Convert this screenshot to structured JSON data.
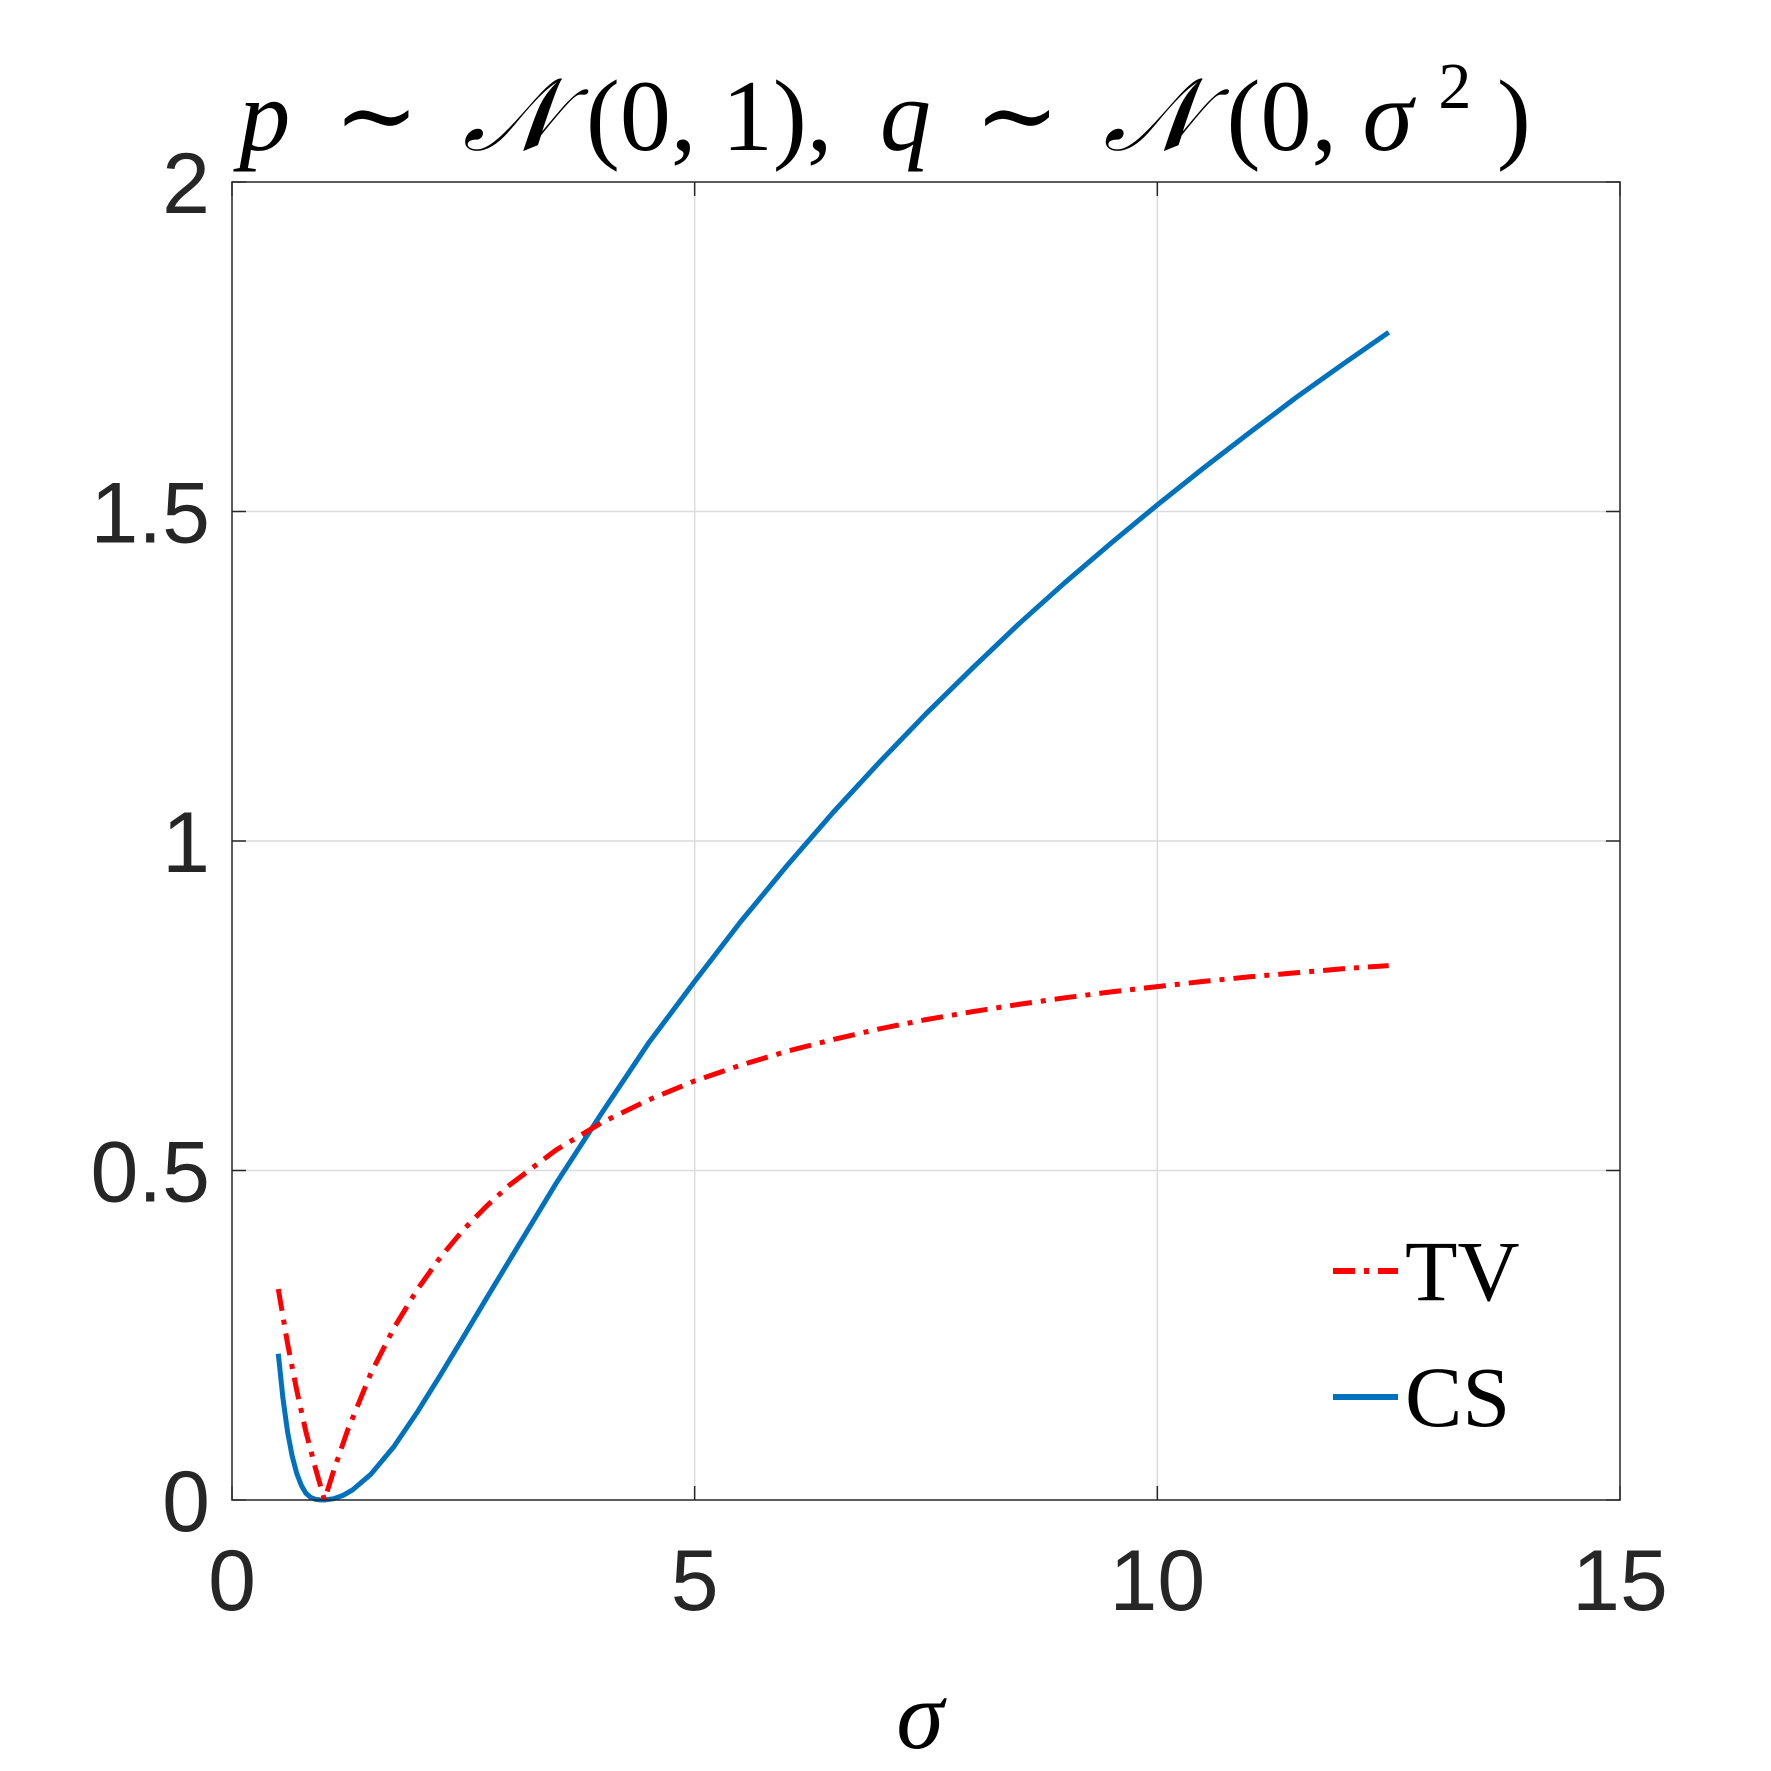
{
  "chart_data": {
    "type": "line",
    "title": "p ~ 𝒩(0, 1), q ~ 𝒩(0, σ²)",
    "title_parts": {
      "p": "p",
      "sim1": "∼",
      "N1": "𝒩",
      "args1": "(0, 1),",
      "q": "q",
      "sim2": "∼",
      "N2": "𝒩",
      "args2_open": "(0, ",
      "sigma": "σ",
      "sup": "2",
      "args2_close": ")"
    },
    "xlabel": "σ",
    "ylabel": "",
    "xlim": [
      0,
      15
    ],
    "ylim": [
      0,
      2
    ],
    "xticks": [
      0,
      5,
      10,
      15
    ],
    "yticks": [
      0,
      0.5,
      1,
      1.5,
      2
    ],
    "xtick_labels": [
      "0",
      "5",
      "10",
      "15"
    ],
    "ytick_labels": [
      "0",
      "0.5",
      "1",
      "1.5",
      "2"
    ],
    "grid": true,
    "legend_position": "lower-right",
    "series": [
      {
        "name": "TV",
        "color": "#FF0000",
        "style": "dash-dot",
        "x": [
          0.5,
          0.6,
          0.7,
          0.8,
          0.9,
          1.0,
          1.1,
          1.25,
          1.5,
          1.75,
          2.0,
          2.25,
          2.5,
          2.75,
          3.0,
          3.5,
          4.0,
          4.5,
          5.0,
          5.5,
          6.0,
          6.5,
          7.0,
          7.5,
          8.0,
          8.5,
          9.0,
          9.5,
          10.0,
          10.5,
          11.0,
          11.5,
          12.0,
          12.5
        ],
        "y": [
          0.32,
          0.238,
          0.166,
          0.103,
          0.049,
          0.0,
          0.045,
          0.106,
          0.192,
          0.261,
          0.319,
          0.368,
          0.41,
          0.446,
          0.478,
          0.531,
          0.573,
          0.607,
          0.636,
          0.66,
          0.681,
          0.699,
          0.715,
          0.729,
          0.741,
          0.752,
          0.762,
          0.771,
          0.779,
          0.787,
          0.794,
          0.8,
          0.806,
          0.811
        ]
      },
      {
        "name": "CS",
        "color": "#0072BD",
        "style": "solid",
        "x": [
          0.5,
          0.55,
          0.6,
          0.65,
          0.7,
          0.75,
          0.8,
          0.85,
          0.9,
          0.95,
          1.0,
          1.1,
          1.2,
          1.3,
          1.5,
          1.75,
          2.0,
          2.25,
          2.5,
          2.75,
          3.0,
          3.5,
          4.0,
          4.5,
          5.0,
          5.5,
          6.0,
          6.5,
          7.0,
          7.5,
          8.0,
          8.5,
          9.0,
          9.5,
          10.0,
          10.5,
          11.0,
          11.5,
          12.0,
          12.5
        ],
        "y": [
          0.222,
          0.155,
          0.104,
          0.067,
          0.04,
          0.022,
          0.01,
          0.004,
          0.001,
          0.0002,
          0.0,
          0.002,
          0.007,
          0.015,
          0.039,
          0.081,
          0.133,
          0.189,
          0.247,
          0.306,
          0.364,
          0.48,
          0.588,
          0.693,
          0.787,
          0.878,
          0.963,
          1.044,
          1.12,
          1.193,
          1.262,
          1.329,
          1.392,
          1.452,
          1.51,
          1.566,
          1.62,
          1.673,
          1.723,
          1.772
        ]
      }
    ]
  }
}
